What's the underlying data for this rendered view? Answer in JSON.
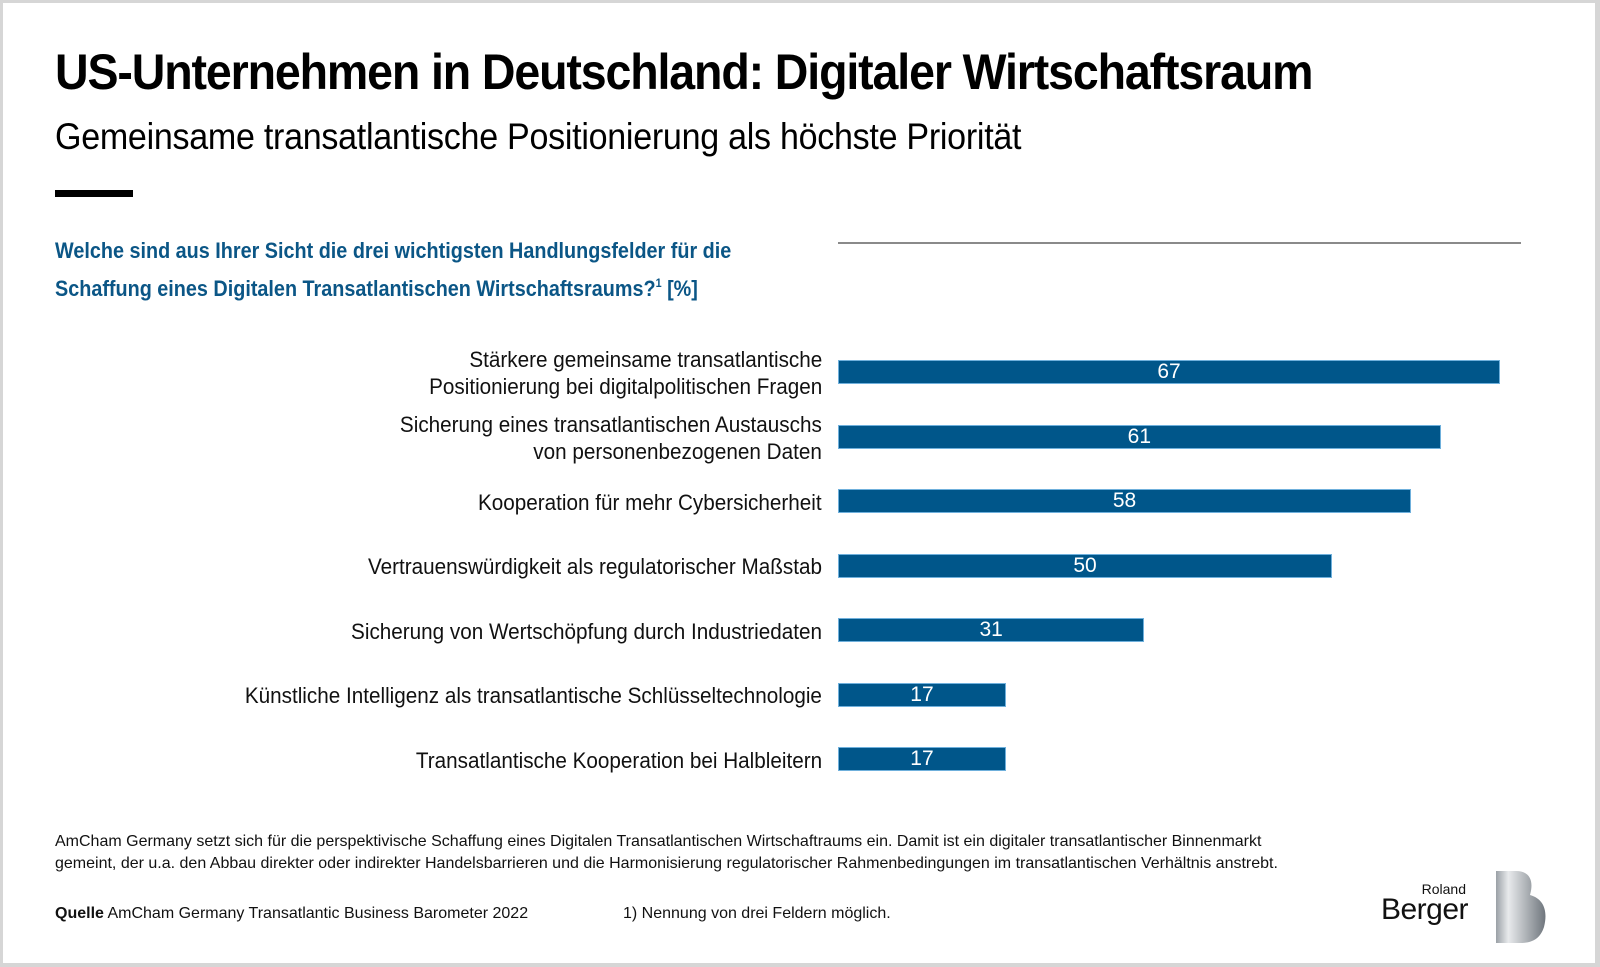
{
  "header": {
    "title": "US-Unternehmen in Deutschland: Digitaler Wirtschaftsraum",
    "subtitle": "Gemeinsame transatlantische Positionierung als höchste Priorität"
  },
  "question": {
    "line1": "Welche sind aus Ihrer Sicht die drei wichtigsten Handlungsfelder für die",
    "line2": "Schaffung eines Digitalen Transatlantischen Wirtschaftsraums?",
    "footnote_marker": "1",
    "unit": " [%]"
  },
  "chart_data": {
    "type": "bar",
    "orientation": "horizontal",
    "title": "Welche sind aus Ihrer Sicht die drei wichtigsten Handlungsfelder für die Schaffung eines Digitalen Transatlantischen Wirtschaftsraums? [%]",
    "xlabel": "",
    "ylabel": "",
    "unit": "%",
    "xlim": [
      0,
      67
    ],
    "grid": false,
    "legend": "none",
    "bar_color": "#00568a",
    "categories": [
      [
        "Stärkere gemeinsame transatlantische",
        "Positionierung bei digitalpolitischen Fragen"
      ],
      [
        "Sicherung eines transatlantischen Austauschs",
        "von personenbezogenen Daten"
      ],
      [
        "Kooperation für mehr Cybersicherheit"
      ],
      [
        "Vertrauenswürdigkeit als regulatorischer Maßstab"
      ],
      [
        "Sicherung von Wertschöpfung durch Industriedaten"
      ],
      [
        "Künstliche Intelligenz als transatlantische Schlüsseltechnologie"
      ],
      [
        "Transatlantische Kooperation bei Halbleitern"
      ]
    ],
    "values": [
      67,
      61,
      58,
      50,
      31,
      17,
      17
    ]
  },
  "note": {
    "line1": "AmCham Germany setzt sich für die perspektivische Schaffung eines Digitalen Transatlantischen Wirtschaftraums ein. Damit ist ein digitaler transatlantischer Binnenmarkt",
    "line2": "gemeint, der u.a. den Abbau direkter oder indirekter Handelsbarrieren und die Harmonisierung regulatorischer Rahmenbedingungen im transatlantischen Verhältnis anstrebt."
  },
  "source": {
    "label": "Quelle",
    "text": " AmCham Germany Transatlantic Business Barometer 2022"
  },
  "footnote": "1) Nennung von drei Feldern möglich.",
  "logo": {
    "small": "Roland",
    "big": "Berger",
    "icon": "roland-berger-b-icon"
  }
}
